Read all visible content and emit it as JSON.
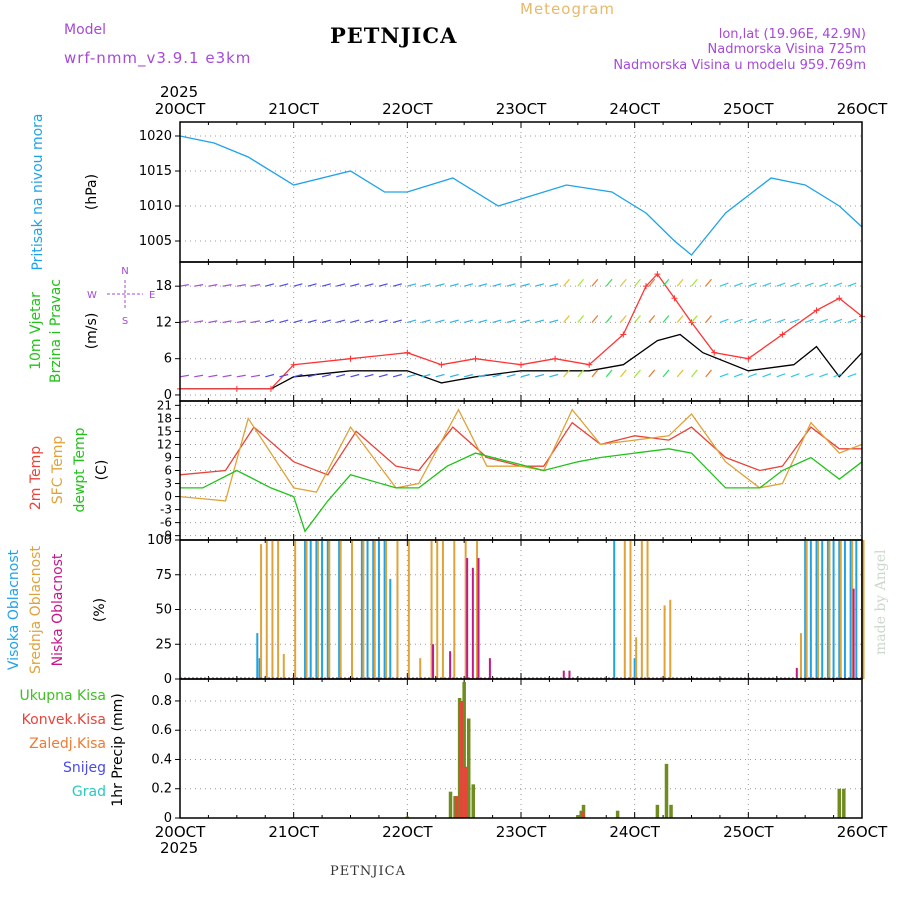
{
  "header": {
    "model_label": "Model",
    "model_name": "wrf-nmm_v3.9.1 e3km",
    "title": "PETNJICA",
    "subtitle": "Meteogram",
    "coords": "lon,lat (19.96E, 42.9N)",
    "elevation": "Nadmorska Visina 725m",
    "model_elevation": "Nadmorska Visina u modelu 959.769m",
    "year_top": "2025",
    "year_bottom": "2025",
    "footer_title": "PETNJICA",
    "credit": "made by Angel"
  },
  "colors": {
    "pressure": "#1fa3e8",
    "temp2m": "#e8443a",
    "sfc": "#dfa33a",
    "dewpt": "#22c21a",
    "wind_black": "#000000",
    "wind_red": "#ff3333",
    "purple": "#a64ad8",
    "high_cloud": "#1fa3e8",
    "mid_cloud": "#dfa33a",
    "low_cloud": "#c2188a",
    "total_rain": "#3fbf24",
    "conv_rain": "#e8443a",
    "frz_rain": "#ef7a30",
    "snow": "#4a4ae8",
    "grad": "#2ac8c0"
  },
  "chart_data": [
    {
      "type": "line",
      "id": "pressure",
      "ylabel": "Pritisak na nivou mora",
      "units": "(hPa)",
      "ylim": [
        1002,
        1022
      ],
      "yticks": [
        1005,
        1010,
        1015,
        1020
      ],
      "x_ticks": [
        "20OCT",
        "21OCT",
        "22OCT",
        "23OCT",
        "24OCT",
        "25OCT",
        "26OCT"
      ],
      "series": [
        {
          "name": "mslp",
          "x_days": [
            0,
            0.3,
            0.6,
            1,
            1.5,
            1.8,
            2.0,
            2.4,
            2.8,
            3.0,
            3.4,
            3.8,
            4.1,
            4.35,
            4.5,
            4.8,
            5.2,
            5.5,
            5.8,
            6.0
          ],
          "values": [
            1020,
            1019,
            1017,
            1013,
            1015,
            1012,
            1012,
            1014,
            1010,
            1011,
            1013,
            1012,
            1009,
            1005,
            1003,
            1009,
            1014,
            1013,
            1010,
            1007
          ]
        }
      ]
    },
    {
      "type": "line",
      "id": "wind",
      "ylabel": [
        "10m Vjetar",
        "Brzina i Pravac"
      ],
      "units": "(m/s)",
      "ylim": [
        -1,
        22
      ],
      "yticks": [
        0,
        6,
        12,
        18
      ],
      "compass": [
        "N",
        "E",
        "W",
        "S"
      ],
      "series": [
        {
          "name": "wind_speed",
          "x_days": [
            0,
            0.5,
            0.8,
            1.0,
            1.5,
            2.0,
            2.3,
            2.6,
            3.0,
            3.3,
            3.6,
            3.9,
            4.2,
            4.4,
            4.6,
            5.0,
            5.4,
            5.6,
            5.8,
            6.0
          ],
          "values": [
            1,
            1,
            1,
            3,
            4,
            4,
            2,
            3,
            4,
            4,
            4,
            5,
            9,
            10,
            7,
            4,
            5,
            8,
            3,
            7
          ]
        },
        {
          "name": "wind_gust",
          "x_days": [
            0,
            0.5,
            0.8,
            1.0,
            1.5,
            2.0,
            2.3,
            2.6,
            3.0,
            3.3,
            3.6,
            3.9,
            4.1,
            4.2,
            4.35,
            4.5,
            4.7,
            5.0,
            5.3,
            5.6,
            5.8,
            6.0
          ],
          "values": [
            1,
            1,
            1,
            5,
            6,
            7,
            5,
            6,
            5,
            6,
            5,
            10,
            18,
            20,
            16,
            12,
            7,
            6,
            10,
            14,
            16,
            13
          ]
        }
      ]
    },
    {
      "type": "line",
      "id": "temperature",
      "ylabel": [
        "2m Temp",
        "SFC Temp",
        "dewpt Temp"
      ],
      "units": "(C)",
      "ylim": [
        -10,
        22
      ],
      "yticks": [
        -9,
        -6,
        -3,
        0,
        3,
        6,
        9,
        12,
        15,
        18,
        21
      ],
      "series": [
        {
          "name": "2m Temp",
          "x_days": [
            0,
            0.4,
            0.65,
            1.0,
            1.3,
            1.55,
            1.9,
            2.1,
            2.4,
            2.7,
            3.0,
            3.2,
            3.45,
            3.7,
            4.0,
            4.3,
            4.5,
            4.8,
            5.1,
            5.3,
            5.55,
            5.8,
            6.0
          ],
          "values": [
            5,
            6,
            16,
            8,
            5,
            15,
            7,
            6,
            16,
            9,
            7,
            7,
            17,
            12,
            14,
            13,
            16,
            9,
            6,
            7,
            16,
            11,
            11
          ]
        },
        {
          "name": "SFC Temp",
          "x_days": [
            0,
            0.4,
            0.6,
            1.0,
            1.2,
            1.5,
            1.9,
            2.1,
            2.45,
            2.7,
            3.0,
            3.2,
            3.45,
            3.7,
            4.0,
            4.3,
            4.5,
            4.8,
            5.1,
            5.3,
            5.55,
            5.8,
            6.0
          ],
          "values": [
            0,
            -1,
            18,
            2,
            1,
            16,
            2,
            3,
            20,
            7,
            7,
            6,
            20,
            12,
            13,
            14,
            19,
            8,
            2,
            3,
            17,
            10,
            12
          ]
        },
        {
          "name": "dewpt Temp",
          "x_days": [
            0,
            0.2,
            0.5,
            0.8,
            1.0,
            1.1,
            1.3,
            1.5,
            1.9,
            2.1,
            2.35,
            2.6,
            2.9,
            3.2,
            3.5,
            3.7,
            4.0,
            4.3,
            4.5,
            4.8,
            5.1,
            5.3,
            5.55,
            5.8,
            6.0
          ],
          "values": [
            2,
            2,
            6,
            2,
            0,
            -8,
            -1,
            5,
            2,
            2,
            7,
            10,
            8,
            6,
            8,
            9,
            10,
            11,
            10,
            2,
            2,
            6,
            9,
            4,
            8
          ]
        }
      ]
    },
    {
      "type": "bar",
      "id": "clouds",
      "ylabel": [
        "Visoka Oblacnost",
        "Srednja Oblacnost",
        "Niska Oblacnost"
      ],
      "units": "(%)",
      "ylim": [
        0,
        100
      ],
      "yticks": [
        0,
        25,
        50,
        75,
        100
      ],
      "series": [
        {
          "name": "Visoka Oblacnost",
          "x_days": [
            0.68,
            0.7,
            1.1,
            1.15,
            1.2,
            1.25,
            1.3,
            1.4,
            1.6,
            1.65,
            1.7,
            1.75,
            1.8,
            1.85,
            3.82,
            4.0,
            5.5,
            5.55,
            5.6,
            5.65,
            5.7,
            5.75,
            5.8,
            5.85,
            5.9,
            5.95,
            6.0
          ],
          "values": [
            33,
            15,
            100,
            100,
            100,
            100,
            100,
            100,
            100,
            100,
            100,
            100,
            100,
            72,
            100,
            15,
            100,
            100,
            100,
            100,
            100,
            100,
            100,
            100,
            100,
            100,
            100
          ]
        },
        {
          "name": "Srednja Oblacnost",
          "x_days": [
            0.7,
            0.75,
            0.8,
            0.85,
            0.9,
            1.0,
            1.1,
            1.2,
            1.3,
            1.4,
            1.5,
            1.6,
            1.7,
            1.8,
            1.9,
            2.0,
            2.1,
            2.2,
            2.25,
            2.3,
            2.4,
            2.5,
            2.6,
            3.9,
            3.95,
            4.0,
            4.05,
            4.1,
            4.25,
            4.3,
            5.45,
            5.5,
            5.6,
            5.7,
            5.8,
            5.9,
            6.0
          ],
          "values": [
            97,
            100,
            100,
            100,
            18,
            100,
            100,
            100,
            100,
            100,
            100,
            100,
            100,
            100,
            100,
            100,
            15,
            100,
            100,
            100,
            100,
            100,
            100,
            100,
            100,
            30,
            100,
            100,
            53,
            57,
            33,
            100,
            100,
            100,
            100,
            100,
            100
          ]
        },
        {
          "name": "Niska Oblacnost",
          "x_days": [
            2.2,
            2.35,
            2.5,
            2.55,
            2.6,
            2.7,
            3.35,
            3.4,
            5.4,
            5.9
          ],
          "values": [
            25,
            20,
            87,
            80,
            87,
            15,
            6,
            6,
            8,
            65
          ]
        }
      ]
    },
    {
      "type": "bar",
      "id": "precip",
      "ylabel": "1hr Precip (mm)",
      "legend": [
        "Ukupna Kisa",
        "Konvek.Kisa",
        "Zaledj.Kisa",
        "Snijeg",
        "Grad"
      ],
      "ylim": [
        0,
        0.95
      ],
      "yticks": [
        0,
        0.2,
        0.4,
        0.6,
        0.8
      ],
      "series": [
        {
          "name": "Ukupna Kisa",
          "x_days": [
            2.0,
            2.38,
            2.42,
            2.46,
            2.5,
            2.54,
            2.58,
            3.5,
            3.53,
            3.55,
            3.85,
            4.2,
            4.28,
            4.32,
            5.8,
            5.84
          ],
          "values": [
            0.01,
            0.18,
            0.15,
            0.82,
            0.93,
            0.68,
            0.23,
            0.02,
            0.05,
            0.09,
            0.05,
            0.09,
            0.37,
            0.09,
            0.2,
            0.2
          ]
        },
        {
          "name": "Konvek.Kisa",
          "x_days": [
            2.42,
            2.46,
            2.5,
            3.53
          ],
          "values": [
            0.15,
            0.8,
            0.35,
            0.04
          ]
        }
      ]
    }
  ]
}
